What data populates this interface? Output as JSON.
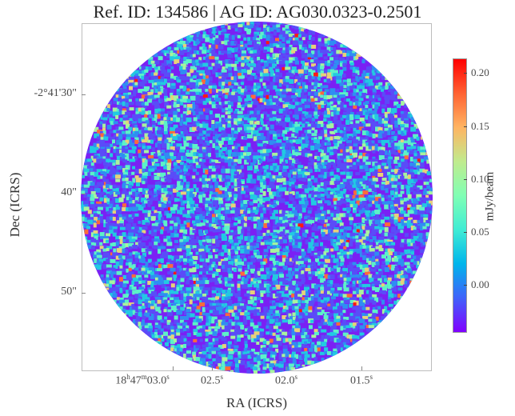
{
  "title": "Ref. ID: 134586 | AG ID: AG030.0323-0.2501",
  "axes": {
    "xlabel": "RA (ICRS)",
    "ylabel": "Dec (ICRS)",
    "x_ticks": [
      {
        "base": "18",
        "h": "h",
        "mid": "47",
        "m": "m",
        "tail": "03.0",
        "s": "s"
      },
      {
        "base": "",
        "h": "",
        "mid": "",
        "m": "",
        "tail": "02.5",
        "s": "s"
      },
      {
        "base": "",
        "h": "",
        "mid": "",
        "m": "",
        "tail": "02.0",
        "s": "s"
      },
      {
        "base": "",
        "h": "",
        "mid": "",
        "m": "",
        "tail": "01.5",
        "s": "s"
      }
    ],
    "y_ticks": [
      "-2°41'30\"",
      "40\"",
      "50\""
    ]
  },
  "colorbar": {
    "label": "mJy/beam",
    "ticks": [
      "0.20",
      "0.15",
      "0.10",
      "0.05",
      "0.00"
    ],
    "colormap": [
      "#8000ff",
      "#4062fa",
      "#00b5eb",
      "#40ecd4",
      "#80ffb4",
      "#c0eb8d",
      "#ffb462",
      "#ff6232",
      "#ff0000"
    ]
  },
  "image": {
    "description_colors": {
      "background": "#ffffff",
      "frame": "#bdbdbd"
    }
  }
}
